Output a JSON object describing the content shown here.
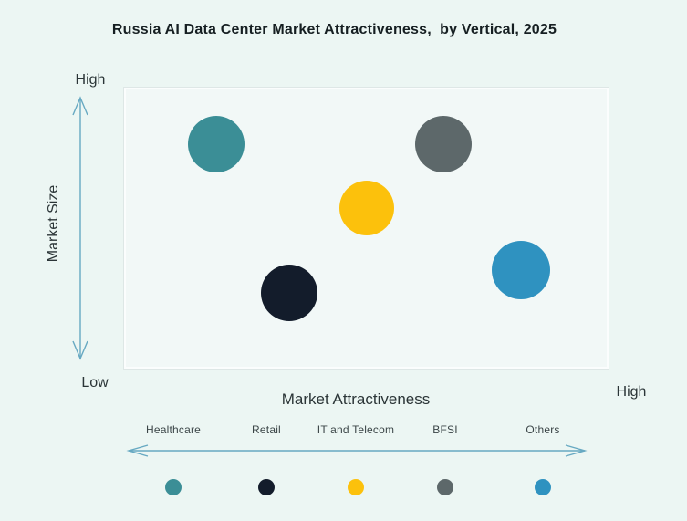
{
  "colors": {
    "background": "#ecf6f3",
    "plot_background": "#f2f8f7",
    "plot_border": "#dee7e6",
    "arrow": "#67a9c2",
    "title_text": "#161f22",
    "axis_text": "#2b3537",
    "legend_text": "#3b4547"
  },
  "chart_data": {
    "type": "scatter",
    "title": "Russia AI Data Center Market Attractiveness,  by Vertical, 2025",
    "xlabel": "Market Attractiveness",
    "ylabel": "Market Size",
    "x_axis": {
      "scale": "qualitative",
      "low": "Low",
      "high": "High",
      "ticks": false
    },
    "y_axis": {
      "scale": "qualitative",
      "low": "Low",
      "high": "High",
      "ticks": false
    },
    "grid": false,
    "legend_position": "bottom",
    "series": [
      {
        "name": "Healthcare",
        "color": "#3b8e96",
        "x": 0.19,
        "y": 0.8,
        "radius_px": 31
      },
      {
        "name": "Retail",
        "color": "#131c2b",
        "x": 0.34,
        "y": 0.27,
        "radius_px": 31
      },
      {
        "name": "IT and Telecom",
        "color": "#fcc10c",
        "x": 0.5,
        "y": 0.57,
        "radius_px": 30
      },
      {
        "name": "BFSI",
        "color": "#5d686a",
        "x": 0.66,
        "y": 0.8,
        "radius_px": 31
      },
      {
        "name": "Others",
        "color": "#2f92c0",
        "x": 0.82,
        "y": 0.35,
        "radius_px": 32
      }
    ],
    "note": "x = Market Attractiveness normalized 0(Low)-1(High); y = Market Size normalized 0(Low)-1(High); values estimated from bubble centers"
  }
}
